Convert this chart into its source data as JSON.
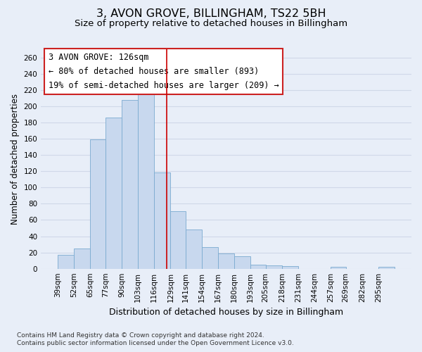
{
  "title": "3, AVON GROVE, BILLINGHAM, TS22 5BH",
  "subtitle": "Size of property relative to detached houses in Billingham",
  "xlabel": "Distribution of detached houses by size in Billingham",
  "ylabel": "Number of detached properties",
  "footer_line1": "Contains HM Land Registry data © Crown copyright and database right 2024.",
  "footer_line2": "Contains public sector information licensed under the Open Government Licence v3.0.",
  "annotation_line1": "3 AVON GROVE: 126sqm",
  "annotation_line2": "← 80% of detached houses are smaller (893)",
  "annotation_line3": "19% of semi-detached houses are larger (209) →",
  "bar_edges": [
    39,
    52,
    65,
    77,
    90,
    103,
    116,
    129,
    141,
    154,
    167,
    180,
    193,
    205,
    218,
    231,
    244,
    257,
    269,
    282,
    295
  ],
  "bar_heights": [
    17,
    25,
    159,
    186,
    208,
    215,
    118,
    71,
    48,
    27,
    19,
    15,
    5,
    4,
    3,
    0,
    0,
    2,
    0,
    0,
    2
  ],
  "bar_color": "#c8d8ee",
  "bar_edge_color": "#7aaad0",
  "vline_x": 126,
  "vline_color": "#cc0000",
  "ylim": [
    0,
    270
  ],
  "yticks": [
    0,
    20,
    40,
    60,
    80,
    100,
    120,
    140,
    160,
    180,
    200,
    220,
    240,
    260
  ],
  "background_color": "#e8eef8",
  "grid_color": "#d0d8e8",
  "title_fontsize": 11.5,
  "subtitle_fontsize": 9.5,
  "xlabel_fontsize": 9,
  "ylabel_fontsize": 8.5,
  "tick_fontsize": 7.5,
  "annotation_fontsize": 8.5,
  "footer_fontsize": 6.5
}
